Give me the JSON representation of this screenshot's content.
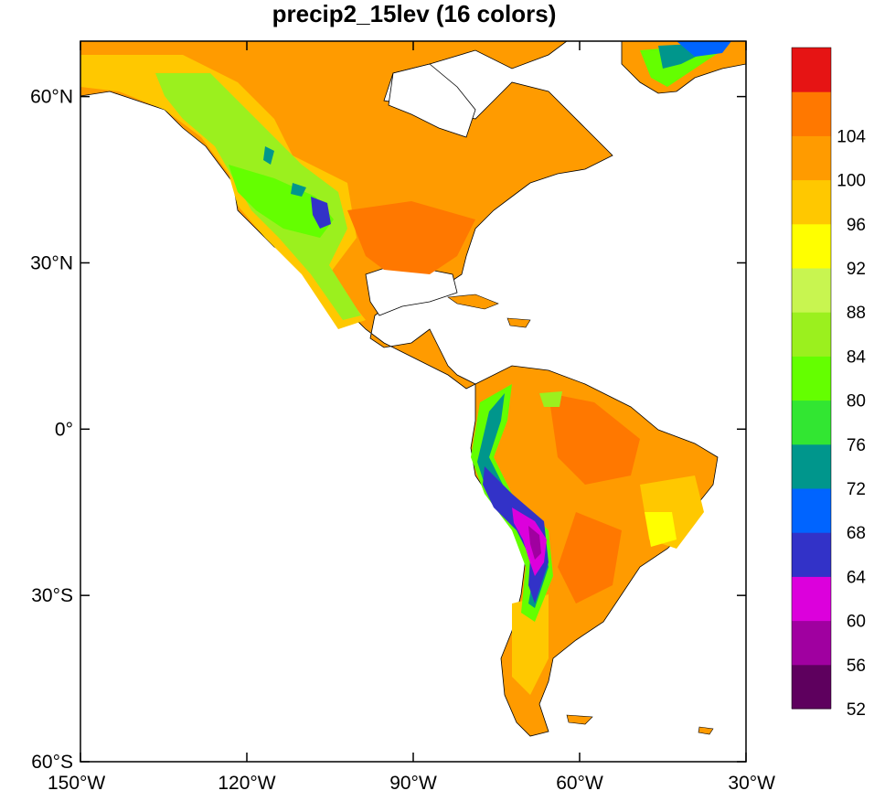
{
  "map": {
    "title": "precip2_15lev (16 colors)",
    "projection": "cylindrical-equidistant",
    "lon_range": [
      -150,
      -30
    ],
    "lat_range": [
      -60,
      70
    ],
    "lat_ticks": [
      {
        "value": 60,
        "label": "60°N"
      },
      {
        "value": 30,
        "label": "30°N"
      },
      {
        "value": 0,
        "label": "0°"
      },
      {
        "value": -30,
        "label": "30°S"
      },
      {
        "value": -60,
        "label": "60°S"
      }
    ],
    "lon_ticks": [
      {
        "value": -150,
        "label": "150°W"
      },
      {
        "value": -120,
        "label": "120°W"
      },
      {
        "value": -90,
        "label": "90°W"
      },
      {
        "value": -60,
        "label": "60°W"
      },
      {
        "value": -30,
        "label": "30°W"
      }
    ],
    "colorbar": {
      "colors": [
        "#5e005e",
        "#a000a0",
        "#dc00dc",
        "#3232c8",
        "#0064ff",
        "#00968c",
        "#32e632",
        "#64ff00",
        "#9bf01e",
        "#c8f550",
        "#ffff00",
        "#ffc800",
        "#ff9b00",
        "#ff7800",
        "#e61414"
      ],
      "labels": [
        "52",
        "56",
        "60",
        "64",
        "68",
        "72",
        "76",
        "80",
        "84",
        "88",
        "92",
        "96",
        "100",
        "104"
      ]
    },
    "ocean_color": "#ffffff",
    "coastline_color": "#000000"
  }
}
